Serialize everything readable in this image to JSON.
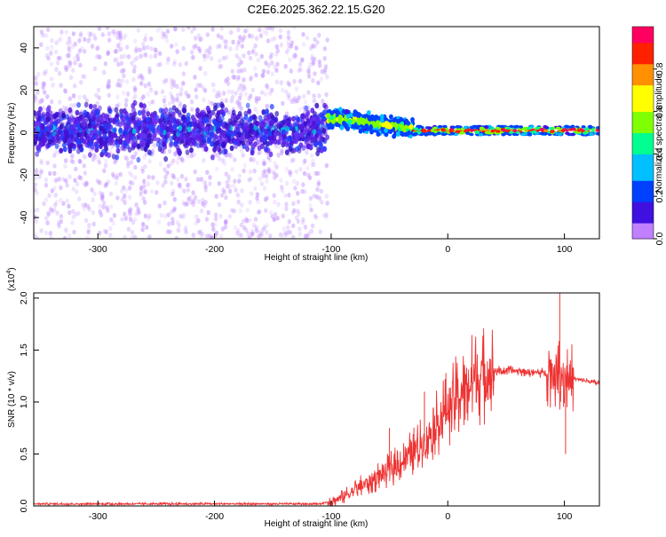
{
  "title": "C2E6.2025.362.22.15.G20",
  "chart_data": [
    {
      "type": "heatmap",
      "name": "spectrogram",
      "xlabel": "Height of straight line (km)",
      "ylabel": "Frequency (Hz)",
      "xlim": [
        -355,
        130
      ],
      "ylim": [
        -50,
        50
      ],
      "xticks": [
        -300,
        -200,
        -100,
        0,
        100
      ],
      "yticks": [
        -40,
        -20,
        0,
        20,
        40
      ],
      "colorbar": {
        "label": "Normalized spectral amplitude",
        "range": [
          0,
          1
        ],
        "ticks": [
          0.0,
          0.2,
          0.4,
          0.6,
          0.8
        ],
        "colors": [
          "#c080ff",
          "#4010e0",
          "#0040ff",
          "#00c0ff",
          "#00ff90",
          "#80ff00",
          "#ffff00",
          "#ff9000",
          "#ff2000",
          "#ff0060"
        ]
      },
      "regions": [
        {
          "x_range": [
            -355,
            -103
          ],
          "center_freq_hz": 1,
          "core_band_hz": [
            -6,
            8
          ],
          "noise_band_hz": [
            -50,
            50
          ],
          "core_amplitude": 0.15,
          "noise_amplitude": 0.03
        },
        {
          "x_range": [
            -103,
            -30
          ],
          "center_freq_hz": 4,
          "core_band_hz": [
            -2,
            9
          ],
          "core_amplitude": 0.45
        },
        {
          "x_range": [
            -30,
            130
          ],
          "center_freq_hz": 1,
          "core_band_hz": [
            -1,
            3
          ],
          "core_amplitude": 0.85
        }
      ]
    },
    {
      "type": "line",
      "name": "snr",
      "xlabel": "Height of straight line (km)",
      "ylabel": "SNR (10 * v/v)",
      "y_multiplier": "(x10",
      "y_multiplier_exp": "4",
      "y_multiplier_close": ")",
      "xlim": [
        -355,
        130
      ],
      "ylim": [
        0,
        2.05
      ],
      "xticks": [
        -300,
        -200,
        -100,
        0,
        100
      ],
      "yticks": [
        0.0,
        0.5,
        1.0,
        1.5,
        2.0
      ],
      "ytick_labels": [
        "0.0",
        "0.5",
        "1.0",
        "1.5",
        "2.0"
      ],
      "color": "#ee3333",
      "series": [
        {
          "name": "SNR trend",
          "x": [
            -355,
            -300,
            -200,
            -110,
            -95,
            -80,
            -60,
            -40,
            -20,
            0,
            20,
            40,
            60,
            80,
            90,
            100,
            110,
            130
          ],
          "y": [
            0.02,
            0.02,
            0.02,
            0.02,
            0.06,
            0.15,
            0.28,
            0.42,
            0.62,
            0.95,
            1.2,
            1.3,
            1.3,
            1.28,
            1.3,
            1.25,
            1.22,
            1.18
          ]
        }
      ],
      "peaks": [
        {
          "x": 96,
          "y": 2.05
        },
        {
          "x": 101,
          "y": 0.5
        },
        {
          "x": -20,
          "y": 1.1
        },
        {
          "x": -50,
          "y": 0.75
        }
      ]
    }
  ]
}
